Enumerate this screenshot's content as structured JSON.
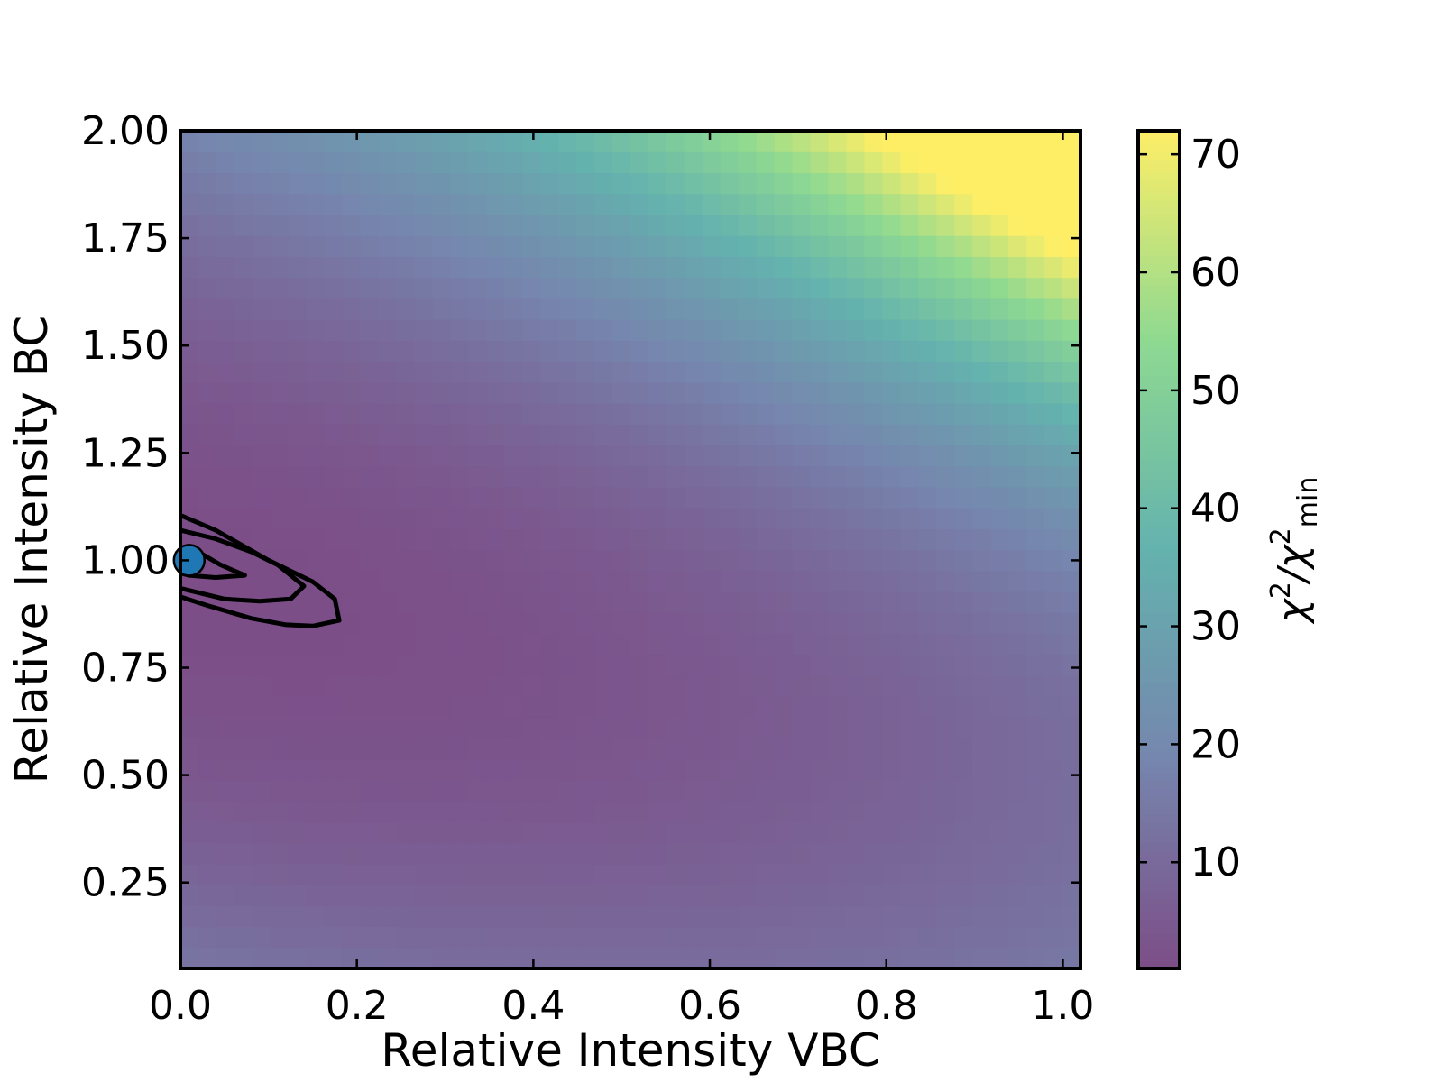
{
  "chart_data": {
    "type": "heatmap",
    "title": "",
    "xlabel": "Relative Intensity VBC",
    "ylabel": "Relative Intensity BC",
    "xlim": [
      0.0,
      1.02
    ],
    "ylim": [
      0.05,
      2.0
    ],
    "x_ticks": [
      {
        "value": 0.0,
        "label": "0.0"
      },
      {
        "value": 0.2,
        "label": "0.2"
      },
      {
        "value": 0.4,
        "label": "0.4"
      },
      {
        "value": 0.6,
        "label": "0.6"
      },
      {
        "value": 0.8,
        "label": "0.8"
      },
      {
        "value": 1.0,
        "label": "1.0"
      }
    ],
    "y_ticks": [
      {
        "value": 0.25,
        "label": "0.25"
      },
      {
        "value": 0.5,
        "label": "0.50"
      },
      {
        "value": 0.75,
        "label": "0.75"
      },
      {
        "value": 1.0,
        "label": "1.00"
      },
      {
        "value": 1.25,
        "label": "1.25"
      },
      {
        "value": 1.5,
        "label": "1.50"
      },
      {
        "value": 1.75,
        "label": "1.75"
      },
      {
        "value": 2.0,
        "label": "2.00"
      }
    ],
    "grid": false,
    "colormap": "viridis",
    "alpha": 0.7,
    "colorbar": {
      "label_main": "χ",
      "label_sup": "2",
      "label_mid": "/χ",
      "label_sup2": "2",
      "label_sub": "min",
      "range": [
        1,
        72
      ],
      "ticks": [
        {
          "value": 10,
          "label": "10"
        },
        {
          "value": 20,
          "label": "20"
        },
        {
          "value": 30,
          "label": "30"
        },
        {
          "value": 40,
          "label": "40"
        },
        {
          "value": 50,
          "label": "50"
        },
        {
          "value": 60,
          "label": "60"
        },
        {
          "value": 70,
          "label": "70"
        }
      ]
    },
    "best_fit_point": {
      "x": 0.01,
      "y": 1.0,
      "color": "#1f77b4"
    },
    "contours": [
      {
        "level": "inner",
        "points": [
          [
            0.0,
            1.03
          ],
          [
            0.02,
            1.02
          ],
          [
            0.045,
            0.99
          ],
          [
            0.073,
            0.965
          ],
          [
            0.04,
            0.96
          ],
          [
            0.01,
            0.965
          ],
          [
            0.0,
            0.97
          ]
        ]
      },
      {
        "level": "middle",
        "points": [
          [
            0.0,
            1.07
          ],
          [
            0.04,
            1.05
          ],
          [
            0.08,
            1.02
          ],
          [
            0.11,
            0.99
          ],
          [
            0.14,
            0.94
          ],
          [
            0.125,
            0.91
          ],
          [
            0.09,
            0.905
          ],
          [
            0.05,
            0.91
          ],
          [
            0.0,
            0.935
          ]
        ]
      },
      {
        "level": "outer",
        "points": [
          [
            0.0,
            1.105
          ],
          [
            0.04,
            1.07
          ],
          [
            0.1,
            1.0
          ],
          [
            0.15,
            0.95
          ],
          [
            0.175,
            0.91
          ],
          [
            0.18,
            0.86
          ],
          [
            0.15,
            0.847
          ],
          [
            0.12,
            0.85
          ],
          [
            0.08,
            0.865
          ],
          [
            0.03,
            0.895
          ],
          [
            0.0,
            0.915
          ]
        ]
      }
    ],
    "colors": {
      "low": "#440154",
      "mid1": "#3b528b",
      "mid2": "#21918c",
      "mid3": "#5ec962",
      "high": "#fde725"
    }
  }
}
